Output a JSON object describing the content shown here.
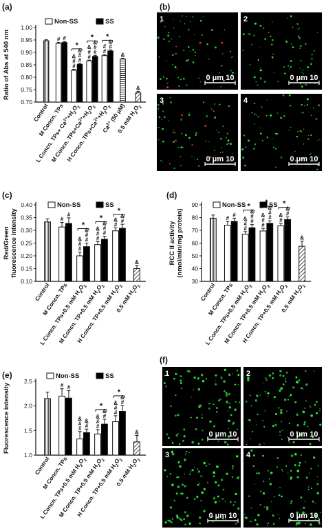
{
  "chart_data": [
    {
      "panel": "(a)",
      "type": "bar",
      "ylabel": "Ratio of Abs at 540 nm",
      "ylim": [
        0.7,
        1.0
      ],
      "yticks": [
        "0.70",
        "0.75",
        "0.80",
        "0.85",
        "0.90",
        "0.95",
        "1.00"
      ],
      "legend": [
        "Non-SS",
        "SS"
      ],
      "categories": [
        "Control",
        "M Concn. TPs",
        "L Concn. TPs+ Ca2++H2O2",
        "M Concn. TPs+Ca2++H2O2",
        "H Concn. TPs+Ca2++H2O2",
        "Ca2+ (50 μM)",
        "0.5 mM H2O2"
      ],
      "bars": [
        {
          "cat": 0,
          "series": "control",
          "value": 0.947,
          "err": 0.004,
          "marks": []
        },
        {
          "cat": 1,
          "series": "Non-SS",
          "value": 0.936,
          "err": 0.004,
          "marks": [
            "#"
          ]
        },
        {
          "cat": 1,
          "series": "SS",
          "value": 0.94,
          "err": 0.004,
          "marks": [
            "#"
          ]
        },
        {
          "cat": 2,
          "series": "Non-SS",
          "value": 0.828,
          "err": 0.004,
          "marks": [
            "&",
            "#",
            "#"
          ]
        },
        {
          "cat": 2,
          "series": "SS",
          "value": 0.852,
          "err": 0.004,
          "marks": [
            "&",
            "#",
            "#"
          ]
        },
        {
          "cat": 3,
          "series": "Non-SS",
          "value": 0.866,
          "err": 0.003,
          "marks": [
            "&",
            "#",
            "#"
          ]
        },
        {
          "cat": 3,
          "series": "SS",
          "value": 0.884,
          "err": 0.004,
          "marks": [
            "&",
            "#",
            "#"
          ]
        },
        {
          "cat": 4,
          "series": "Non-SS",
          "value": 0.887,
          "err": 0.004,
          "marks": [
            "#",
            "#"
          ]
        },
        {
          "cat": 4,
          "series": "SS",
          "value": 0.906,
          "err": 0.004,
          "marks": [
            "&",
            "#"
          ]
        },
        {
          "cat": 5,
          "series": "ca",
          "value": 0.873,
          "err": 0.003,
          "marks": [
            "&"
          ]
        },
        {
          "cat": 6,
          "series": "h2o2",
          "value": 0.737,
          "err": 0.006,
          "marks": [
            "&"
          ]
        }
      ],
      "significance": [
        2,
        3,
        4
      ]
    },
    {
      "panel": "(c)",
      "type": "bar",
      "ylabel": "Red/Green fluorescence intensity",
      "ylim": [
        0.1,
        0.4
      ],
      "yticks": [
        "0.10",
        "0.15",
        "0.20",
        "0.25",
        "0.30",
        "0.35",
        "0.40"
      ],
      "legend": [
        "Non-SS",
        "SS"
      ],
      "categories": [
        "Control",
        "M Concn. TPs",
        "L Concn. TPs+0.5 mM H2O2",
        "M Concn. TP+0.5 mM H2O2",
        "H Concn. TP+0.5 mM H2O2",
        "0.5 mM H2O2"
      ],
      "bars": [
        {
          "cat": 0,
          "series": "control",
          "value": 0.333,
          "err": 0.012,
          "marks": []
        },
        {
          "cat": 1,
          "series": "Non-SS",
          "value": 0.313,
          "err": 0.018,
          "marks": [
            "#"
          ]
        },
        {
          "cat": 1,
          "series": "SS",
          "value": 0.327,
          "err": 0.022,
          "marks": [
            "#"
          ]
        },
        {
          "cat": 2,
          "series": "Non-SS",
          "value": 0.2,
          "err": 0.015,
          "marks": [
            "&",
            "#",
            "#"
          ]
        },
        {
          "cat": 2,
          "series": "SS",
          "value": 0.236,
          "err": 0.014,
          "marks": [
            "&",
            "#",
            "#"
          ]
        },
        {
          "cat": 3,
          "series": "Non-SS",
          "value": 0.244,
          "err": 0.012,
          "marks": [
            "&",
            "#",
            "#"
          ]
        },
        {
          "cat": 3,
          "series": "SS",
          "value": 0.265,
          "err": 0.012,
          "marks": [
            "&",
            "#",
            "#"
          ]
        },
        {
          "cat": 4,
          "series": "Non-SS",
          "value": 0.298,
          "err": 0.012,
          "marks": [
            "&",
            "#"
          ]
        },
        {
          "cat": 4,
          "series": "SS",
          "value": 0.308,
          "err": 0.016,
          "marks": [
            "&",
            "#"
          ]
        },
        {
          "cat": 5,
          "series": "h2o2",
          "value": 0.15,
          "err": 0.012,
          "marks": [
            "&"
          ]
        }
      ],
      "significance": [
        2,
        3,
        4
      ]
    },
    {
      "panel": "(d)",
      "type": "bar",
      "ylabel": "RCC II activity (nmol/min/mg protein)",
      "ylim": [
        30,
        90
      ],
      "yticks": [
        "30",
        "40",
        "50",
        "60",
        "70",
        "80",
        "90"
      ],
      "legend": [
        "Non-SS",
        "SS"
      ],
      "categories": [
        "Control",
        "M Concn. TPs",
        "L Concn. TPs+0.5 mM H2O2",
        "M Concn. TP+0.5 mM H2O2",
        "H Concn. TP+0.5 mM H2O2",
        "0.5 mM H2O2"
      ],
      "bars": [
        {
          "cat": 0,
          "series": "control",
          "value": 79.5,
          "err": 2.5,
          "marks": []
        },
        {
          "cat": 1,
          "series": "Non-SS",
          "value": 74.0,
          "err": 3.0,
          "marks": [
            "#"
          ]
        },
        {
          "cat": 1,
          "series": "SS",
          "value": 77.0,
          "err": 2.5,
          "marks": [
            "#"
          ]
        },
        {
          "cat": 2,
          "series": "Non-SS",
          "value": 67.0,
          "err": 2.0,
          "marks": [
            "&",
            "#",
            "#"
          ]
        },
        {
          "cat": 2,
          "series": "SS",
          "value": 72.0,
          "err": 2.5,
          "marks": [
            "&",
            "#",
            "#"
          ]
        },
        {
          "cat": 3,
          "series": "Non-SS",
          "value": 69.5,
          "err": 2.0,
          "marks": [
            "&",
            "#",
            "#"
          ]
        },
        {
          "cat": 3,
          "series": "SS",
          "value": 75.5,
          "err": 2.0,
          "marks": [
            "&",
            "#",
            "#"
          ]
        },
        {
          "cat": 4,
          "series": "Non-SS",
          "value": 73.5,
          "err": 2.0,
          "marks": [
            "&",
            "#"
          ]
        },
        {
          "cat": 4,
          "series": "SS",
          "value": 78.5,
          "err": 2.0,
          "marks": [
            "&",
            "#"
          ]
        },
        {
          "cat": 5,
          "series": "h2o2",
          "value": 57.5,
          "err": 4.0,
          "marks": [
            "&"
          ]
        }
      ],
      "significance": [
        2,
        3,
        4
      ]
    },
    {
      "panel": "(e)",
      "type": "bar",
      "ylabel": "Fluorescence intensity",
      "ylim": [
        1.0,
        2.5
      ],
      "yticks": [
        "1.0",
        "1.5",
        "2.0",
        "2.5"
      ],
      "legend": [
        "Non-SS",
        "SS"
      ],
      "categories": [
        "Control",
        "M Concn. TPs",
        "L Concn. TPs+0.5 mM H2O2",
        "M Concn. TP+0.5 mM H2O2",
        "H Concn. TP+0.5 mM H2O2",
        "0.5 mM H2O2"
      ],
      "bars": [
        {
          "cat": 0,
          "series": "control",
          "value": 2.15,
          "err": 0.13,
          "marks": []
        },
        {
          "cat": 1,
          "series": "Non-SS",
          "value": 2.2,
          "err": 0.15,
          "marks": [
            "#"
          ]
        },
        {
          "cat": 1,
          "series": "SS",
          "value": 2.16,
          "err": 0.15,
          "marks": [
            "#"
          ]
        },
        {
          "cat": 2,
          "series": "Non-SS",
          "value": 1.33,
          "err": 0.15,
          "marks": [
            "&",
            "#",
            "#"
          ]
        },
        {
          "cat": 2,
          "series": "SS",
          "value": 1.46,
          "err": 0.07,
          "marks": [
            "&",
            "#"
          ]
        },
        {
          "cat": 3,
          "series": "Non-SS",
          "value": 1.43,
          "err": 0.09,
          "marks": [
            "&",
            "#",
            "#"
          ]
        },
        {
          "cat": 3,
          "series": "SS",
          "value": 1.63,
          "err": 0.1,
          "marks": [
            "&",
            "#"
          ]
        },
        {
          "cat": 4,
          "series": "Non-SS",
          "value": 1.68,
          "err": 0.12,
          "marks": [
            "&",
            "#",
            "#"
          ]
        },
        {
          "cat": 4,
          "series": "SS",
          "value": 1.89,
          "err": 0.12,
          "marks": [
            "&",
            "#"
          ]
        },
        {
          "cat": 5,
          "series": "h2o2",
          "value": 1.27,
          "err": 0.13,
          "marks": [
            "&"
          ]
        }
      ],
      "significance": [
        3,
        4
      ]
    }
  ],
  "micrographs": [
    {
      "panel": "(b)",
      "tiles": [
        {
          "num": "1",
          "scale": "0   μm  10",
          "red": 0.12
        },
        {
          "num": "2",
          "scale": "0   μm  10",
          "red": 0.03
        },
        {
          "num": "3",
          "scale": "0   μm  10",
          "red": 0.08
        },
        {
          "num": "4",
          "scale": "0   μm  10",
          "red": 0.04
        }
      ]
    },
    {
      "panel": "(f)",
      "tiles": [
        {
          "num": "1",
          "scale": "0   μm  10",
          "red": 0.0
        },
        {
          "num": "2",
          "scale": "0   μm  10",
          "red": 0.0
        },
        {
          "num": "3",
          "scale": "0   μm  10",
          "red": 0.0
        },
        {
          "num": "4",
          "scale": "0   μm  10",
          "red": 0.0
        }
      ]
    }
  ],
  "sig_symbols": {
    "hash": "#",
    "amp": "&",
    "star": "*"
  }
}
